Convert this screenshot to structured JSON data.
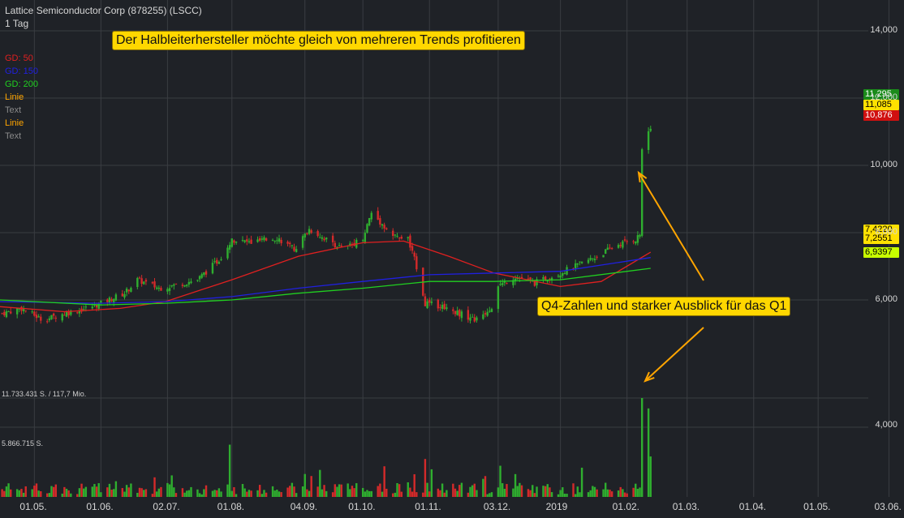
{
  "header": {
    "title": "Lattice Semiconductor Corp (878255) (LSCC)",
    "interval": "1 Tag"
  },
  "legend": [
    {
      "label": "GD: 50",
      "color": "#e02020"
    },
    {
      "label": "GD: 150",
      "color": "#2020e0"
    },
    {
      "label": "GD: 200",
      "color": "#20d020"
    },
    {
      "label": "Linie",
      "color": "#ffa500"
    },
    {
      "label": "Text",
      "color": "#8a8a8a"
    },
    {
      "label": "Linie",
      "color": "#ffa500"
    },
    {
      "label": "Text",
      "color": "#8a8a8a"
    }
  ],
  "annotations": {
    "headline": "Der Halbleiterhersteller möchte gleich von mehreren Trends profitieren",
    "callout": "Q4-Zahlen und starker Ausblick für das Q1"
  },
  "volume_labels": {
    "max": "11.733.431 S. / 117,7 Mio.",
    "mid": "5.866.715 S."
  },
  "price_tags": [
    {
      "value": "11,295",
      "bg": "#1a8a1a",
      "fg": "#ffffff",
      "price": 11.295
    },
    {
      "value": "11,085",
      "bg": "#ffe100",
      "fg": "#000000",
      "price": 11.085
    },
    {
      "value": "10,876",
      "bg": "#d01010",
      "fg": "#ffffff",
      "price": 10.876
    },
    {
      "value": "7,4220",
      "bg": "#ffe100",
      "fg": "#000000",
      "price": 7.422
    },
    {
      "value": "7,2551",
      "bg": "#ffe100",
      "fg": "#000000",
      "price": 7.2551
    },
    {
      "value": "6,9397",
      "bg": "#c8ff00",
      "fg": "#000000",
      "price": 6.9397
    }
  ],
  "colors": {
    "background": "#1f2227",
    "grid": "#3a3d42",
    "up": "#2fae2f",
    "down": "#d42a2a",
    "annotation": "#ffa500"
  },
  "chart_data": {
    "type": "candlestick",
    "y_ticks": [
      "14,000",
      "12,000",
      "10,000",
      "8,000",
      "6,000",
      "4,000"
    ],
    "x_ticks": [
      "01.05.",
      "01.06.",
      "02.07.",
      "01.08.",
      "04.09.",
      "01.10.",
      "01.11.",
      "03.12.",
      "2019",
      "01.02.",
      "01.03.",
      "01.04.",
      "01.05.",
      "03.06."
    ],
    "x_range": [
      "2018-04-15",
      "2019-06-10"
    ],
    "ylim": [
      4,
      14.5
    ],
    "close_anchors": [
      {
        "date": "2018-04-16",
        "close": 5.6
      },
      {
        "date": "2018-04-25",
        "close": 5.75
      },
      {
        "date": "2018-05-05",
        "close": 5.4
      },
      {
        "date": "2018-05-15",
        "close": 5.6
      },
      {
        "date": "2018-05-25",
        "close": 5.75
      },
      {
        "date": "2018-06-01",
        "close": 5.9
      },
      {
        "date": "2018-06-12",
        "close": 6.2
      },
      {
        "date": "2018-06-18",
        "close": 6.6
      },
      {
        "date": "2018-06-28",
        "close": 6.35
      },
      {
        "date": "2018-07-06",
        "close": 6.45
      },
      {
        "date": "2018-07-16",
        "close": 6.6
      },
      {
        "date": "2018-07-26",
        "close": 7.2
      },
      {
        "date": "2018-08-01",
        "close": 7.8
      },
      {
        "date": "2018-08-10",
        "close": 7.7
      },
      {
        "date": "2018-08-22",
        "close": 7.85
      },
      {
        "date": "2018-08-30",
        "close": 7.5
      },
      {
        "date": "2018-09-06",
        "close": 8.1
      },
      {
        "date": "2018-09-14",
        "close": 7.8
      },
      {
        "date": "2018-09-22",
        "close": 7.5
      },
      {
        "date": "2018-10-01",
        "close": 7.85
      },
      {
        "date": "2018-10-05",
        "close": 8.6
      },
      {
        "date": "2018-10-15",
        "close": 7.9
      },
      {
        "date": "2018-10-22",
        "close": 7.8
      },
      {
        "date": "2018-10-26",
        "close": 7.0
      },
      {
        "date": "2018-10-30",
        "close": 5.9
      },
      {
        "date": "2018-11-08",
        "close": 5.8
      },
      {
        "date": "2018-11-15",
        "close": 5.6
      },
      {
        "date": "2018-11-23",
        "close": 5.4
      },
      {
        "date": "2018-11-30",
        "close": 5.8
      },
      {
        "date": "2018-12-03",
        "close": 6.4
      },
      {
        "date": "2018-12-11",
        "close": 6.7
      },
      {
        "date": "2018-12-20",
        "close": 6.5
      },
      {
        "date": "2018-12-28",
        "close": 6.7
      },
      {
        "date": "2019-01-08",
        "close": 7.0
      },
      {
        "date": "2019-01-18",
        "close": 7.3
      },
      {
        "date": "2019-01-28",
        "close": 7.65
      },
      {
        "date": "2019-02-05",
        "close": 7.8
      },
      {
        "date": "2019-02-07",
        "close": 7.95
      },
      {
        "date": "2019-02-08",
        "close": 10.5
      },
      {
        "date": "2019-02-11",
        "close": 11.0
      },
      {
        "date": "2019-02-12",
        "close": 11.085
      }
    ],
    "moving_averages": [
      {
        "name": "GD: 50",
        "color": "#e02020",
        "points": [
          {
            "date": "2018-04-15",
            "value": 5.8
          },
          {
            "date": "2018-05-15",
            "value": 5.65
          },
          {
            "date": "2018-06-10",
            "value": 5.75
          },
          {
            "date": "2018-07-01",
            "value": 5.95
          },
          {
            "date": "2018-08-01",
            "value": 6.6
          },
          {
            "date": "2018-09-01",
            "value": 7.3
          },
          {
            "date": "2018-10-01",
            "value": 7.7
          },
          {
            "date": "2018-10-20",
            "value": 7.75
          },
          {
            "date": "2018-11-10",
            "value": 7.3
          },
          {
            "date": "2018-12-01",
            "value": 6.8
          },
          {
            "date": "2019-01-01",
            "value": 6.4
          },
          {
            "date": "2019-01-20",
            "value": 6.55
          },
          {
            "date": "2019-02-12",
            "value": 7.42
          }
        ]
      },
      {
        "name": "GD: 150",
        "color": "#2020e0",
        "points": [
          {
            "date": "2018-04-15",
            "value": 5.95
          },
          {
            "date": "2018-06-01",
            "value": 5.9
          },
          {
            "date": "2018-07-01",
            "value": 5.95
          },
          {
            "date": "2018-08-01",
            "value": 6.1
          },
          {
            "date": "2018-09-01",
            "value": 6.35
          },
          {
            "date": "2018-10-01",
            "value": 6.55
          },
          {
            "date": "2018-11-01",
            "value": 6.75
          },
          {
            "date": "2018-12-01",
            "value": 6.8
          },
          {
            "date": "2019-01-01",
            "value": 6.85
          },
          {
            "date": "2019-02-12",
            "value": 7.26
          }
        ]
      },
      {
        "name": "GD: 200",
        "color": "#20d020",
        "points": [
          {
            "date": "2018-04-15",
            "value": 6.0
          },
          {
            "date": "2018-06-01",
            "value": 5.85
          },
          {
            "date": "2018-07-01",
            "value": 5.9
          },
          {
            "date": "2018-08-01",
            "value": 6.0
          },
          {
            "date": "2018-09-01",
            "value": 6.2
          },
          {
            "date": "2018-10-01",
            "value": 6.35
          },
          {
            "date": "2018-11-01",
            "value": 6.55
          },
          {
            "date": "2018-12-01",
            "value": 6.55
          },
          {
            "date": "2019-01-01",
            "value": 6.6
          },
          {
            "date": "2019-02-12",
            "value": 6.94
          }
        ]
      }
    ],
    "volume_max": 11733431,
    "volume_spikes": [
      {
        "date": "2018-07-31",
        "value": 6200000
      },
      {
        "date": "2018-10-30",
        "value": 4500000
      },
      {
        "date": "2018-12-04",
        "value": 3700000
      },
      {
        "date": "2019-02-08",
        "value": 11733431
      },
      {
        "date": "2019-02-11",
        "value": 10500000
      },
      {
        "date": "2019-02-12",
        "value": 4800000
      }
    ]
  }
}
